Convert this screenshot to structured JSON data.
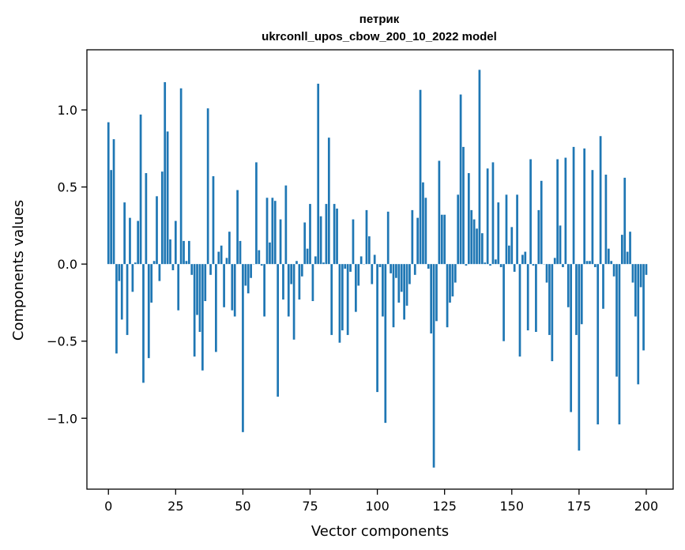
{
  "chart_data": {
    "type": "bar",
    "title": "петрик",
    "subtitle": "ukrconll_upos_cbow_200_10_2022 model",
    "xlabel": "Vector components",
    "ylabel": "Components values",
    "xlim": [
      -8,
      210
    ],
    "ylim": [
      -1.46,
      1.39
    ],
    "xticks": [
      0,
      25,
      50,
      75,
      100,
      125,
      150,
      175,
      200
    ],
    "yticks": [
      1.0,
      0.5,
      0.0,
      -0.5,
      -1.0
    ],
    "xtick_labels": [
      "0",
      "25",
      "50",
      "75",
      "100",
      "125",
      "150",
      "175",
      "200"
    ],
    "ytick_labels": [
      "1.0",
      "0.5",
      "0.0",
      "−0.5",
      "−1.0"
    ],
    "bar_color": "#1f77b4",
    "grid": false,
    "values": [
      0.92,
      0.61,
      0.81,
      -0.58,
      -0.11,
      -0.36,
      0.4,
      -0.46,
      0.3,
      -0.18,
      0.01,
      0.28,
      0.97,
      -0.77,
      0.59,
      -0.61,
      -0.25,
      0.02,
      0.44,
      -0.11,
      0.6,
      1.18,
      0.86,
      0.16,
      -0.04,
      0.28,
      -0.3,
      1.14,
      0.15,
      0.02,
      0.15,
      -0.07,
      -0.6,
      -0.33,
      -0.44,
      -0.69,
      -0.24,
      1.01,
      -0.07,
      0.57,
      -0.57,
      0.08,
      0.12,
      -0.28,
      0.04,
      0.21,
      -0.3,
      -0.34,
      0.48,
      0.15,
      -1.09,
      -0.14,
      -0.19,
      -0.09,
      0.0,
      0.66,
      0.09,
      -0.01,
      -0.34,
      0.43,
      0.14,
      0.43,
      0.41,
      -0.86,
      0.29,
      -0.23,
      0.51,
      -0.34,
      -0.13,
      -0.49,
      0.02,
      -0.23,
      -0.08,
      0.27,
      0.1,
      0.39,
      -0.24,
      0.05,
      1.17,
      0.31,
      0.01,
      0.39,
      0.82,
      -0.46,
      0.39,
      0.36,
      -0.51,
      -0.43,
      -0.03,
      -0.46,
      -0.05,
      0.29,
      -0.31,
      -0.14,
      0.05,
      0.0,
      0.35,
      0.18,
      -0.13,
      0.06,
      -0.83,
      -0.02,
      -0.34,
      -1.03,
      0.34,
      -0.06,
      -0.41,
      -0.09,
      -0.25,
      -0.18,
      -0.36,
      -0.27,
      -0.13,
      0.35,
      -0.07,
      0.3,
      1.13,
      0.53,
      0.43,
      -0.03,
      -0.45,
      -1.32,
      -0.37,
      0.67,
      0.32,
      0.32,
      -0.41,
      -0.25,
      -0.21,
      -0.12,
      0.45,
      1.1,
      0.76,
      -0.01,
      0.59,
      0.35,
      0.29,
      0.23,
      1.26,
      0.2,
      0.01,
      0.62,
      -0.01,
      0.66,
      0.03,
      0.4,
      -0.02,
      -0.5,
      0.45,
      0.12,
      0.24,
      -0.05,
      0.45,
      -0.6,
      0.06,
      0.08,
      -0.43,
      0.68,
      -0.01,
      -0.44,
      0.35,
      0.54,
      0.0,
      -0.12,
      -0.46,
      -0.63,
      0.04,
      0.68,
      0.25,
      -0.02,
      0.69,
      -0.28,
      -0.96,
      0.76,
      -0.46,
      -1.21,
      -0.39,
      0.75,
      0.02,
      0.02,
      0.61,
      -0.02,
      -1.04,
      0.83,
      -0.29,
      0.58,
      0.1,
      0.02,
      -0.08,
      -0.73,
      -1.04,
      0.19,
      0.56,
      0.08,
      0.21,
      -0.12,
      -0.34,
      -0.78,
      -0.15,
      -0.56,
      -0.07
    ]
  }
}
